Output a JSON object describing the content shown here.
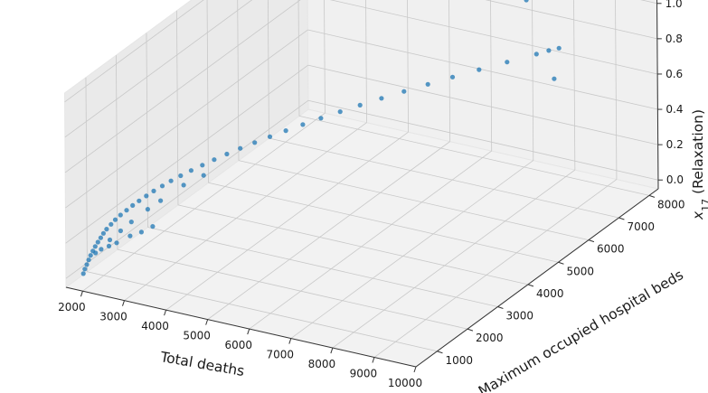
{
  "chart_data": {
    "type": "scatter",
    "subtype": "3d-scatter",
    "xlabel": "Total deaths",
    "ylabel": "Maximum occupied hospital beds",
    "zlabel_main": "x",
    "zlabel_sub": "17",
    "zlabel_rest": " (Relaxation)",
    "x_ticks": [
      2000,
      3000,
      4000,
      5000,
      6000,
      7000,
      8000,
      9000,
      10000
    ],
    "y_ticks": [
      1000,
      2000,
      3000,
      4000,
      5000,
      6000,
      7000,
      8000
    ],
    "z_ticks": [
      0.0,
      0.2,
      0.4,
      0.6,
      0.8,
      1.0
    ],
    "xlim": [
      1600,
      10000
    ],
    "ylim": [
      300,
      8300
    ],
    "zlim": [
      -0.05,
      1.05
    ],
    "grid": true,
    "marker_color": "#1f77b4",
    "series": [
      {
        "values": [
          {
            "x": 1800,
            "y": 600,
            "z": 0.0
          },
          {
            "x": 1800,
            "y": 650,
            "z": 0.02
          },
          {
            "x": 1810,
            "y": 700,
            "z": 0.04
          },
          {
            "x": 1820,
            "y": 750,
            "z": 0.06
          },
          {
            "x": 1830,
            "y": 800,
            "z": 0.08
          },
          {
            "x": 1850,
            "y": 850,
            "z": 0.1
          },
          {
            "x": 1870,
            "y": 900,
            "z": 0.12
          },
          {
            "x": 1900,
            "y": 950,
            "z": 0.14
          },
          {
            "x": 1930,
            "y": 1000,
            "z": 0.16
          },
          {
            "x": 1960,
            "y": 1050,
            "z": 0.18
          },
          {
            "x": 2000,
            "y": 1100,
            "z": 0.2
          },
          {
            "x": 2050,
            "y": 1180,
            "z": 0.22
          },
          {
            "x": 2100,
            "y": 1250,
            "z": 0.24
          },
          {
            "x": 2170,
            "y": 1330,
            "z": 0.26
          },
          {
            "x": 2250,
            "y": 1420,
            "z": 0.28
          },
          {
            "x": 2330,
            "y": 1510,
            "z": 0.3
          },
          {
            "x": 2420,
            "y": 1600,
            "z": 0.32
          },
          {
            "x": 2520,
            "y": 1700,
            "z": 0.34
          },
          {
            "x": 2620,
            "y": 1810,
            "z": 0.36
          },
          {
            "x": 2740,
            "y": 1930,
            "z": 0.38
          },
          {
            "x": 2860,
            "y": 2050,
            "z": 0.4
          },
          {
            "x": 3000,
            "y": 2180,
            "z": 0.42
          },
          {
            "x": 3150,
            "y": 2320,
            "z": 0.44
          },
          {
            "x": 3310,
            "y": 2470,
            "z": 0.46
          },
          {
            "x": 3480,
            "y": 2630,
            "z": 0.48
          },
          {
            "x": 3660,
            "y": 2800,
            "z": 0.5
          },
          {
            "x": 3850,
            "y": 2980,
            "z": 0.52
          },
          {
            "x": 4060,
            "y": 3170,
            "z": 0.54
          },
          {
            "x": 4280,
            "y": 3370,
            "z": 0.56
          },
          {
            "x": 4510,
            "y": 3580,
            "z": 0.58
          },
          {
            "x": 4760,
            "y": 3800,
            "z": 0.6
          },
          {
            "x": 5020,
            "y": 4040,
            "z": 0.62
          },
          {
            "x": 5300,
            "y": 4290,
            "z": 0.64
          },
          {
            "x": 5590,
            "y": 4550,
            "z": 0.66
          },
          {
            "x": 5900,
            "y": 4830,
            "z": 0.68
          },
          {
            "x": 6230,
            "y": 5120,
            "z": 0.7
          },
          {
            "x": 6580,
            "y": 5430,
            "z": 0.72
          },
          {
            "x": 6940,
            "y": 5750,
            "z": 0.74
          },
          {
            "x": 7330,
            "y": 6090,
            "z": 0.76
          },
          {
            "x": 7740,
            "y": 6450,
            "z": 0.78
          },
          {
            "x": 8170,
            "y": 6830,
            "z": 0.8
          },
          {
            "x": 8350,
            "y": 6990,
            "z": 0.81
          },
          {
            "x": 8500,
            "y": 7120,
            "z": 0.815
          },
          {
            "x": 2150,
            "y": 1000,
            "z": 0.16
          },
          {
            "x": 2300,
            "y": 1150,
            "z": 0.2
          },
          {
            "x": 2450,
            "y": 1300,
            "z": 0.24
          },
          {
            "x": 2700,
            "y": 1500,
            "z": 0.3
          },
          {
            "x": 2900,
            "y": 1650,
            "z": 0.34
          },
          {
            "x": 3200,
            "y": 2000,
            "z": 0.4
          },
          {
            "x": 3500,
            "y": 2250,
            "z": 0.44
          },
          {
            "x": 1950,
            "y": 800,
            "z": 0.1
          },
          {
            "x": 2050,
            "y": 850,
            "z": 0.12
          },
          {
            "x": 2200,
            "y": 900,
            "z": 0.14
          },
          {
            "x": 2350,
            "y": 950,
            "z": 0.16
          },
          {
            "x": 2600,
            "y": 1050,
            "z": 0.2
          },
          {
            "x": 2800,
            "y": 1150,
            "z": 0.22
          },
          {
            "x": 3000,
            "y": 1250,
            "z": 0.25
          },
          {
            "x": 9200,
            "y": 6000,
            "z": 0.82
          },
          {
            "x": 6800,
            "y": 7600,
            "z": 1.0
          },
          {
            "x": 7300,
            "y": 7700,
            "z": 0.95
          }
        ]
      }
    ]
  }
}
